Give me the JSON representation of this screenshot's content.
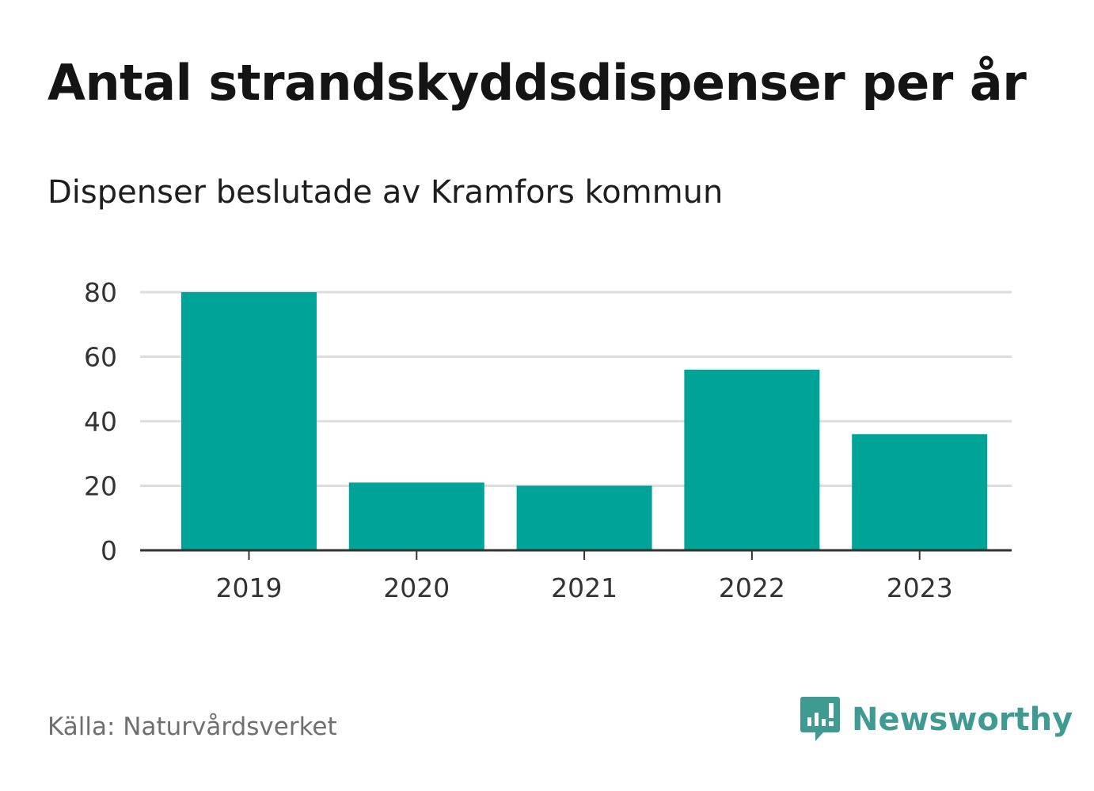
{
  "title": "Antal strandskyddsdispenser per år",
  "subtitle": "Dispenser beslutade av Kramfors kommun",
  "source": "Källa: Naturvårdsverket",
  "brand": {
    "name": "Newsworthy",
    "icon": "newsworthy-logo-icon",
    "color": "#3f9b92"
  },
  "colors": {
    "bar": "#00a398",
    "grid": "#dddddd",
    "axis": "#333333",
    "tick_text": "#333333"
  },
  "chart_data": {
    "type": "bar",
    "categories": [
      "2019",
      "2020",
      "2021",
      "2022",
      "2023"
    ],
    "values": [
      80,
      21,
      20,
      56,
      36
    ],
    "title": "Antal strandskyddsdispenser per år",
    "xlabel": "",
    "ylabel": "",
    "ylim": [
      0,
      80
    ],
    "yticks": [
      "0",
      "20",
      "40",
      "60",
      "80"
    ],
    "grid": true
  }
}
